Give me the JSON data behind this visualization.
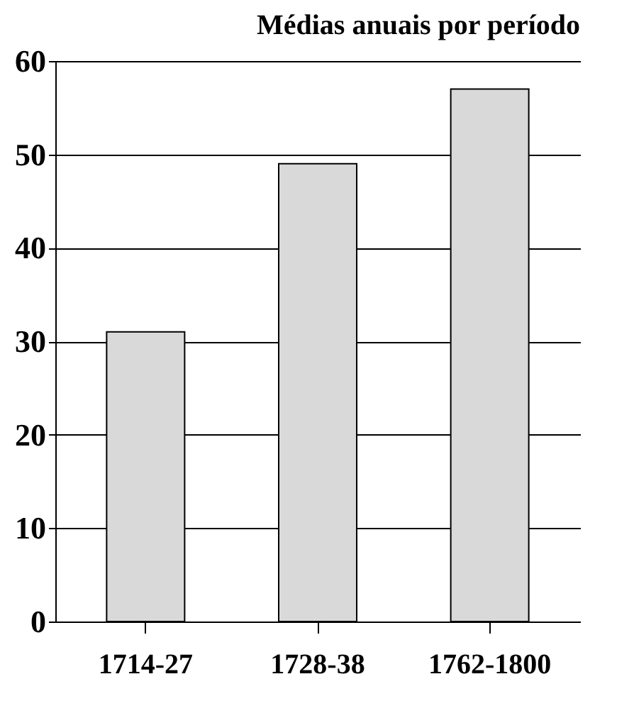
{
  "chart_data": {
    "type": "bar",
    "title": "Médias anuais por período",
    "categories": [
      "1714-27",
      "1728-38",
      "1762-1800"
    ],
    "values": [
      31,
      49,
      57
    ],
    "color": "#d9d9d9",
    "ylim": [
      0,
      60
    ],
    "yticks": [
      0,
      10,
      20,
      30,
      40,
      50,
      60
    ],
    "grid": "y"
  }
}
